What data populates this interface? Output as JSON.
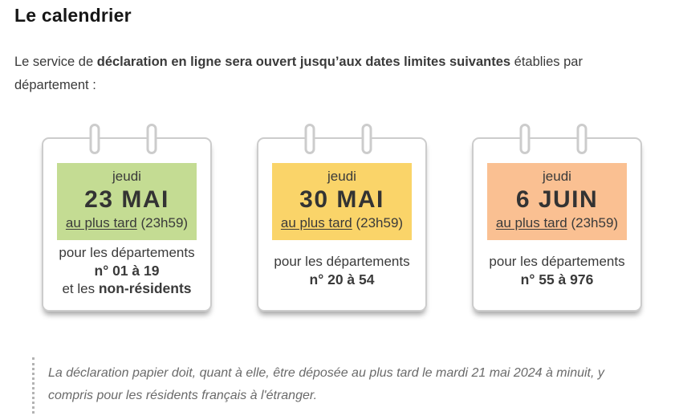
{
  "page": {
    "title": "Le calendrier",
    "intro": {
      "pre": "Le service de ",
      "bold": "déclaration en ligne sera ouvert jusqu’aux dates limites suivantes",
      "post": " établies par département :"
    },
    "cards": [
      {
        "weekday": "jeudi",
        "date": "23 MAI",
        "deadline_underlined": "au plus tard",
        "deadline_time": "(23h59)",
        "audience_line1": "pour les départements",
        "audience_bold": "n° 01 à 19",
        "audience_extra_pre": "et les ",
        "audience_extra_bold": "non-résidents",
        "highlight_color": "#c4dc93"
      },
      {
        "weekday": "jeudi",
        "date": "30 MAI",
        "deadline_underlined": "au plus tard",
        "deadline_time": "(23h59)",
        "audience_line1": "pour les départements",
        "audience_bold": "n° 20 à 54",
        "highlight_color": "#fad469"
      },
      {
        "weekday": "jeudi",
        "date": "6 JUIN",
        "deadline_underlined": "au plus tard",
        "deadline_time": "(23h59)",
        "audience_line1": "pour les départements",
        "audience_bold": "n° 55 à 976",
        "highlight_color": "#fac092"
      }
    ],
    "note": "La déclaration papier doit, quant à elle, être déposée au plus tard le mardi 21 mai 2024 à minuit, y compris pour les résidents français à l'étranger.",
    "colors": {
      "title_text": "#161616",
      "body_text": "#3a3a3a",
      "card_border": "#cccccc",
      "note_text": "#6a6a6a",
      "green": "#c4dc93",
      "yellow": "#fad469",
      "orange": "#fac092"
    }
  }
}
